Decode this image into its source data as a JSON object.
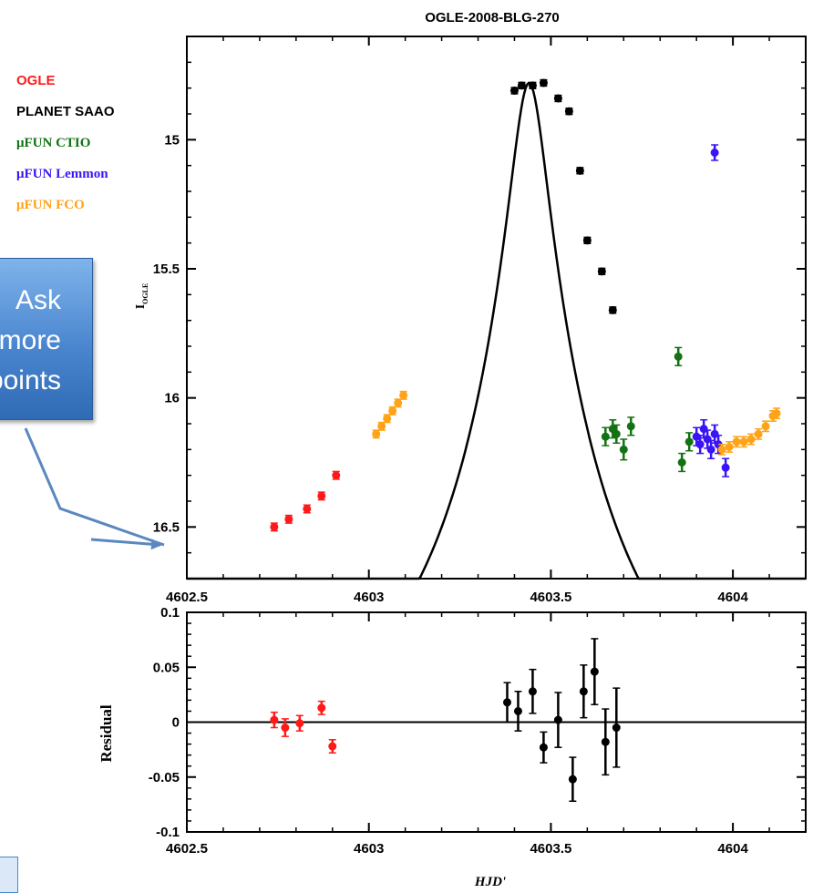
{
  "callout": {
    "lines": [
      "Ask",
      "more",
      "points"
    ]
  },
  "chart_data": [
    {
      "type": "scatter",
      "title": "OGLE-2008-BLG-270",
      "xlabel": "",
      "ylabel": "I",
      "ylabel_sub": "OGLE",
      "xlim": [
        4602.5,
        4604.2
      ],
      "ylim": [
        16.7,
        14.6
      ],
      "y_inverted": true,
      "x_ticks": [
        "4602.5",
        "4603",
        "4603.5",
        "4604"
      ],
      "y_ticks": [
        "15",
        "15.5",
        "16",
        "16.5"
      ],
      "legend": [
        "OGLE",
        "PLANET SAAO",
        "μFUN  CTIO",
        "μFUN  Lemmon",
        "μFUN  FCO"
      ],
      "legend_position": "outside-left",
      "model_curve": {
        "t0": 4603.44,
        "peak_mag": 14.78,
        "baseline_mag": 17.4,
        "u0": 0.1,
        "tE": 0.48
      },
      "series": [
        {
          "name": "OGLE",
          "color": "#ff1a1a",
          "points": [
            [
              4602.74,
              16.5
            ],
            [
              4602.78,
              16.47
            ],
            [
              4602.83,
              16.43
            ],
            [
              4602.87,
              16.38
            ],
            [
              4602.91,
              16.3
            ]
          ],
          "err": [
            0.015,
            0.015,
            0.015,
            0.015,
            0.015
          ]
        },
        {
          "name": "PLANET SAAO",
          "color": "#000000",
          "points": [
            [
              4603.4,
              14.81
            ],
            [
              4603.42,
              14.79
            ],
            [
              4603.45,
              14.79
            ],
            [
              4603.48,
              14.78
            ],
            [
              4603.52,
              14.84
            ],
            [
              4603.55,
              14.89
            ],
            [
              4603.58,
              15.12
            ],
            [
              4603.6,
              15.39
            ],
            [
              4603.64,
              15.51
            ],
            [
              4603.67,
              15.66
            ]
          ],
          "err": [
            0.012,
            0.012,
            0.012,
            0.012,
            0.012,
            0.012,
            0.012,
            0.012,
            0.012,
            0.012
          ]
        },
        {
          "name": "μFUN  CTIO",
          "color": "#137313",
          "points": [
            [
              4603.65,
              16.15
            ],
            [
              4603.67,
              16.12
            ],
            [
              4603.68,
              16.14
            ],
            [
              4603.7,
              16.2
            ],
            [
              4603.72,
              16.11
            ],
            [
              4603.85,
              15.84
            ],
            [
              4603.86,
              16.25
            ],
            [
              4603.88,
              16.17
            ]
          ],
          "err": [
            0.035,
            0.035,
            0.035,
            0.04,
            0.035,
            0.035,
            0.035,
            0.035
          ]
        },
        {
          "name": "μFUN  Lemmon",
          "color": "#3a14f5",
          "points": [
            [
              4603.95,
              15.05
            ],
            [
              4603.9,
              16.15
            ],
            [
              4603.91,
              16.18
            ],
            [
              4603.92,
              16.12
            ],
            [
              4603.93,
              16.16
            ],
            [
              4603.94,
              16.2
            ],
            [
              4603.95,
              16.14
            ],
            [
              4603.96,
              16.18
            ],
            [
              4603.98,
              16.27
            ]
          ],
          "err": [
            0.03,
            0.035,
            0.035,
            0.035,
            0.035,
            0.035,
            0.035,
            0.035,
            0.035
          ]
        },
        {
          "name": "μFUN  FCO",
          "color": "#ffa318",
          "points": [
            [
              4603.02,
              16.14
            ],
            [
              4603.035,
              16.11
            ],
            [
              4603.05,
              16.08
            ],
            [
              4603.065,
              16.05
            ],
            [
              4603.08,
              16.02
            ],
            [
              4603.095,
              15.99
            ],
            [
              4603.97,
              16.2
            ],
            [
              4603.99,
              16.19
            ],
            [
              4604.01,
              16.17
            ],
            [
              4604.03,
              16.17
            ],
            [
              4604.05,
              16.16
            ],
            [
              4604.07,
              16.14
            ],
            [
              4604.09,
              16.11
            ],
            [
              4604.11,
              16.07
            ],
            [
              4604.12,
              16.06
            ]
          ],
          "err": [
            0.015,
            0.015,
            0.015,
            0.015,
            0.015,
            0.015,
            0.02,
            0.02,
            0.02,
            0.02,
            0.02,
            0.02,
            0.02,
            0.02,
            0.02
          ]
        }
      ]
    },
    {
      "type": "scatter",
      "title": "",
      "xlabel": "HJD'",
      "ylabel": "Residual",
      "xlim": [
        4602.5,
        4604.2
      ],
      "ylim": [
        -0.1,
        0.1
      ],
      "y_inverted": true,
      "x_ticks": [
        "4602.5",
        "4603",
        "4603.5",
        "4604"
      ],
      "y_ticks": [
        "-0.1",
        "-0.05",
        "0",
        "0.05",
        "0.1"
      ],
      "zero_line": true,
      "series": [
        {
          "name": "OGLE",
          "color": "#ff1a1a",
          "points": [
            [
              4602.74,
              0.002
            ],
            [
              4602.77,
              -0.005
            ],
            [
              4602.81,
              -0.001
            ],
            [
              4602.87,
              0.013
            ],
            [
              4602.9,
              -0.022
            ]
          ],
          "err": [
            0.007,
            0.008,
            0.007,
            0.006,
            0.006
          ]
        },
        {
          "name": "PLANET SAAO",
          "color": "#000000",
          "points": [
            [
              4603.38,
              0.018
            ],
            [
              4603.41,
              0.01
            ],
            [
              4603.45,
              0.028
            ],
            [
              4603.48,
              -0.023
            ],
            [
              4603.52,
              0.002
            ],
            [
              4603.56,
              -0.052
            ],
            [
              4603.59,
              0.028
            ],
            [
              4603.62,
              0.046
            ],
            [
              4603.65,
              -0.018
            ],
            [
              4603.68,
              -0.005
            ]
          ],
          "err": [
            0.018,
            0.018,
            0.02,
            0.014,
            0.025,
            0.02,
            0.024,
            0.03,
            0.03,
            0.036
          ]
        }
      ]
    }
  ]
}
